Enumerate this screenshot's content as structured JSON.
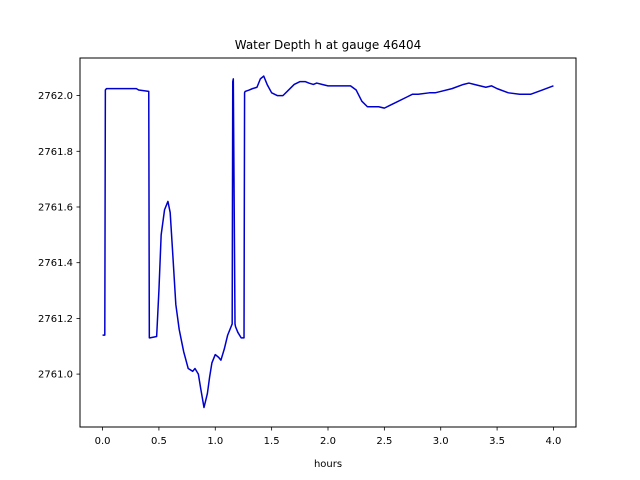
{
  "chart_data": {
    "type": "line",
    "title": "Water Depth h at gauge 46404",
    "xlabel": "hours",
    "ylabel": "",
    "xlim": [
      -0.2,
      4.2
    ],
    "ylim": [
      2760.81,
      2762.135
    ],
    "xticks": [
      0.0,
      0.5,
      1.0,
      1.5,
      2.0,
      2.5,
      3.0,
      3.5,
      4.0
    ],
    "xtick_labels": [
      "0.0",
      "0.5",
      "1.0",
      "1.5",
      "2.0",
      "2.5",
      "3.0",
      "3.5",
      "4.0"
    ],
    "yticks": [
      2761.0,
      2761.2,
      2761.4,
      2761.6,
      2761.8,
      2762.0
    ],
    "ytick_labels": [
      "2761.0",
      "2761.2",
      "2761.4",
      "2761.6",
      "2761.8",
      "2762.0"
    ],
    "grid": false,
    "series": [
      {
        "color": "#0000cc",
        "x": [
          0.0,
          0.02,
          0.025,
          0.035,
          0.3,
          0.32,
          0.41,
          0.415,
          0.42,
          0.48,
          0.5,
          0.52,
          0.55,
          0.58,
          0.6,
          0.62,
          0.65,
          0.68,
          0.7,
          0.72,
          0.76,
          0.8,
          0.82,
          0.85,
          0.87,
          0.9,
          0.93,
          0.95,
          0.97,
          1.0,
          1.03,
          1.05,
          1.08,
          1.11,
          1.15,
          1.155,
          1.16,
          1.175,
          1.18,
          1.2,
          1.23,
          1.255,
          1.26,
          1.265,
          1.3,
          1.33,
          1.37,
          1.4,
          1.43,
          1.46,
          1.5,
          1.55,
          1.6,
          1.65,
          1.7,
          1.75,
          1.8,
          1.83,
          1.87,
          1.9,
          1.95,
          2.0,
          2.05,
          2.1,
          2.15,
          2.2,
          2.25,
          2.3,
          2.35,
          2.4,
          2.45,
          2.5,
          2.55,
          2.6,
          2.7,
          2.75,
          2.8,
          2.9,
          2.95,
          3.0,
          3.1,
          3.2,
          3.25,
          3.3,
          3.4,
          3.45,
          3.5,
          3.6,
          3.7,
          3.8,
          3.9,
          4.0
        ],
        "y": [
          2761.14,
          2761.14,
          2762.02,
          2762.025,
          2762.025,
          2762.02,
          2762.015,
          2761.13,
          2761.13,
          2761.135,
          2761.3,
          2761.5,
          2761.59,
          2761.62,
          2761.58,
          2761.45,
          2761.25,
          2761.16,
          2761.12,
          2761.08,
          2761.02,
          2761.01,
          2761.02,
          2761.0,
          2760.95,
          2760.88,
          2760.93,
          2760.99,
          2761.04,
          2761.07,
          2761.06,
          2761.05,
          2761.09,
          2761.14,
          2761.18,
          2762.05,
          2762.06,
          2761.18,
          2761.17,
          2761.15,
          2761.13,
          2761.13,
          2762.01,
          2762.015,
          2762.02,
          2762.025,
          2762.03,
          2762.06,
          2762.07,
          2762.04,
          2762.01,
          2762.0,
          2762.0,
          2762.02,
          2762.04,
          2762.05,
          2762.05,
          2762.045,
          2762.04,
          2762.045,
          2762.04,
          2762.035,
          2762.035,
          2762.035,
          2762.035,
          2762.035,
          2762.02,
          2761.98,
          2761.96,
          2761.96,
          2761.96,
          2761.955,
          2761.965,
          2761.975,
          2761.995,
          2762.005,
          2762.005,
          2762.01,
          2762.01,
          2762.015,
          2762.025,
          2762.04,
          2762.045,
          2762.04,
          2762.03,
          2762.035,
          2762.025,
          2762.01,
          2762.005,
          2762.005,
          2762.02,
          2762.035
        ]
      }
    ]
  }
}
